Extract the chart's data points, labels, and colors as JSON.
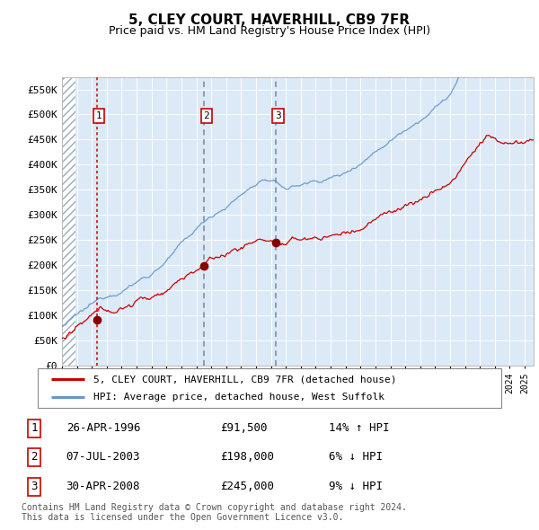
{
  "title": "5, CLEY COURT, HAVERHILL, CB9 7FR",
  "subtitle": "Price paid vs. HM Land Registry's House Price Index (HPI)",
  "title_fontsize": 11,
  "subtitle_fontsize": 9,
  "ylim": [
    0,
    575000
  ],
  "yticks": [
    0,
    50000,
    100000,
    150000,
    200000,
    250000,
    300000,
    350000,
    400000,
    450000,
    500000,
    550000
  ],
  "ytick_labels": [
    "£0",
    "£50K",
    "£100K",
    "£150K",
    "£200K",
    "£250K",
    "£300K",
    "£350K",
    "£400K",
    "£450K",
    "£500K",
    "£550K"
  ],
  "plot_bg_color": "#dce9f7",
  "grid_color": "#ffffff",
  "red_line_color": "#cc0000",
  "blue_line_color": "#6699cc",
  "marker_color": "#880000",
  "sale_dates": [
    1996.32,
    2003.52,
    2008.33
  ],
  "sale_prices": [
    91500,
    198000,
    245000
  ],
  "sale_labels": [
    "1",
    "2",
    "3"
  ],
  "vline1_color": "#cc0000",
  "vline23_color": "#778899",
  "legend_red": "5, CLEY COURT, HAVERHILL, CB9 7FR (detached house)",
  "legend_blue": "HPI: Average price, detached house, West Suffolk",
  "table_rows": [
    {
      "label": "1",
      "date": "26-APR-1996",
      "price": "£91,500",
      "change": "14% ↑ HPI"
    },
    {
      "label": "2",
      "date": "07-JUL-2003",
      "price": "£198,000",
      "change": "6% ↓ HPI"
    },
    {
      "label": "3",
      "date": "30-APR-2008",
      "price": "£245,000",
      "change": "9% ↓ HPI"
    }
  ],
  "footer": "Contains HM Land Registry data © Crown copyright and database right 2024.\nThis data is licensed under the Open Government Licence v3.0.",
  "xstart": 1994.0,
  "xend": 2025.6
}
